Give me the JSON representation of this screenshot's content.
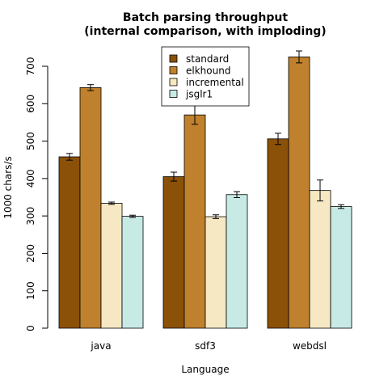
{
  "chart_data": {
    "type": "bar",
    "title": "Batch parsing throughput",
    "subtitle": "(internal comparison, with imploding)",
    "xlabel": "Language",
    "ylabel": "1000 chars/s",
    "categories": [
      "java",
      "sdf3",
      "webdsl"
    ],
    "ylim": [
      0,
      700
    ],
    "yticks": [
      0,
      100,
      200,
      300,
      400,
      500,
      600,
      700
    ],
    "grid": false,
    "legend_position": "top-center",
    "series": [
      {
        "name": "standard",
        "color": "#8B5108",
        "values": [
          458,
          405,
          506
        ],
        "errors": [
          9,
          12,
          15
        ]
      },
      {
        "name": "elkhound",
        "color": "#BF812D",
        "values": [
          643,
          570,
          725
        ],
        "errors": [
          8,
          25,
          16
        ]
      },
      {
        "name": "incremental",
        "color": "#F6E8C3",
        "values": [
          334,
          298,
          368
        ],
        "errors": [
          3,
          5,
          28
        ]
      },
      {
        "name": "jsglr1",
        "color": "#C7EAE5",
        "values": [
          299,
          357,
          325
        ],
        "errors": [
          3,
          8,
          5
        ]
      }
    ]
  }
}
